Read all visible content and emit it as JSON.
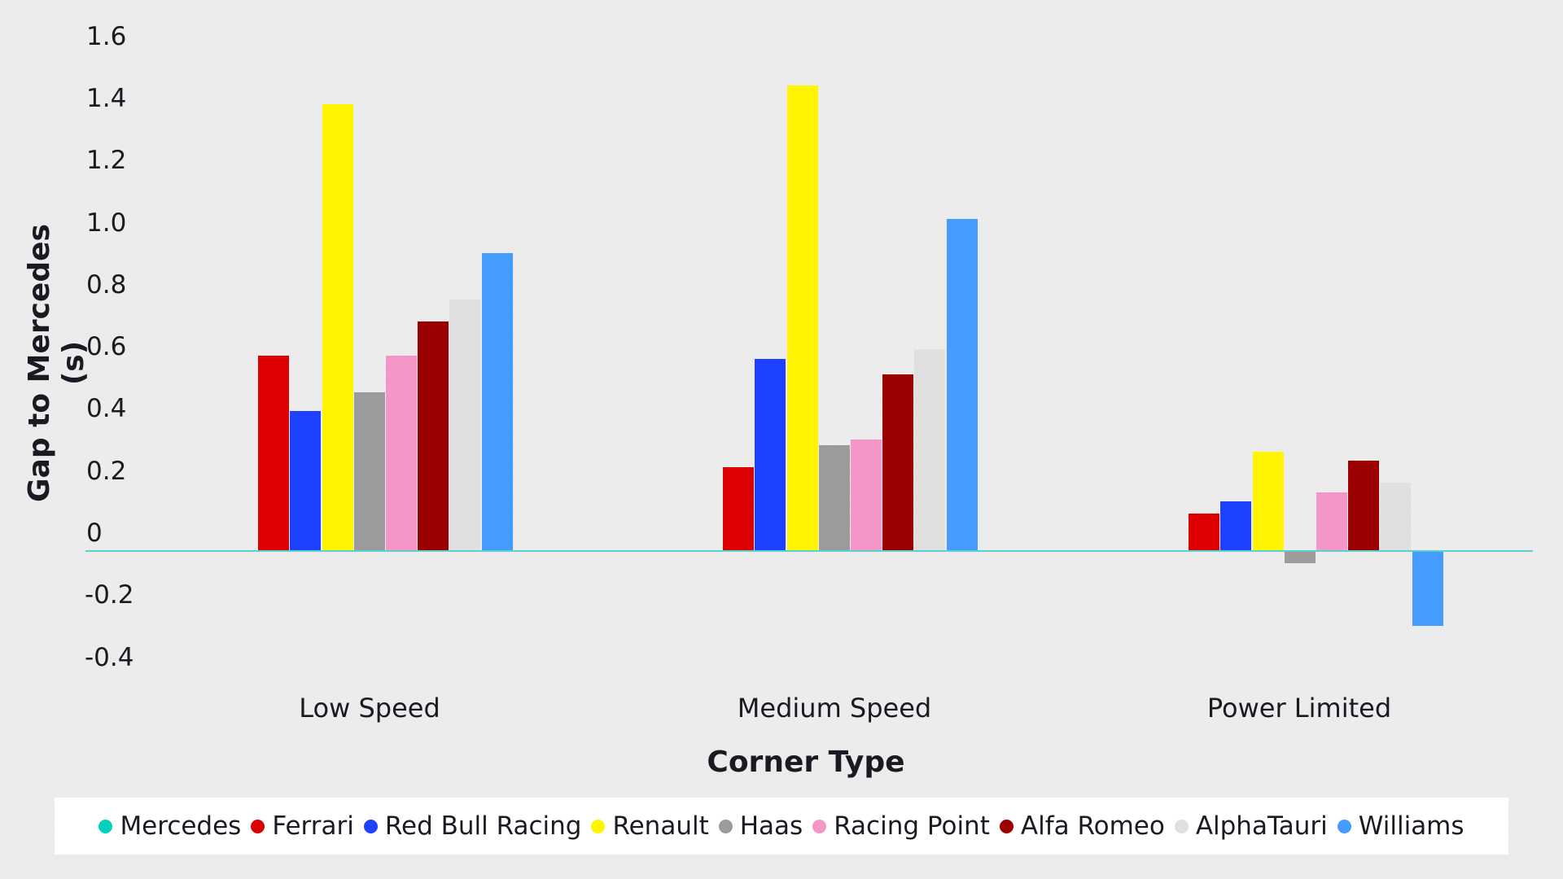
{
  "chart_data": {
    "type": "bar",
    "title": "",
    "xlabel": "Corner Type",
    "ylabel": "Gap to Mercedes (s)",
    "ylim": [
      -0.4,
      1.6
    ],
    "yticks": [
      "1.6",
      "1.4",
      "1.2",
      "1.0",
      "0.8",
      "0.6",
      "0.4",
      "0.2",
      "0",
      "-0.2",
      "-0.4"
    ],
    "grid": false,
    "legend_position": "bottom",
    "categories": [
      "Low Speed",
      "Medium Speed",
      "Power Limited"
    ],
    "series": [
      {
        "name": "Mercedes",
        "color": "#00d2be",
        "values": [
          0,
          0,
          0
        ]
      },
      {
        "name": "Ferrari",
        "color": "#dc0000",
        "values": [
          0.63,
          0.27,
          0.12
        ]
      },
      {
        "name": "Red Bull Racing",
        "color": "#1e41ff",
        "values": [
          0.45,
          0.62,
          0.16
        ]
      },
      {
        "name": "Renault",
        "color": "#fff500",
        "values": [
          1.44,
          1.5,
          0.32
        ]
      },
      {
        "name": "Haas",
        "color": "#9b9b9b",
        "values": [
          0.51,
          0.34,
          -0.04
        ]
      },
      {
        "name": "Racing Point",
        "color": "#f596c8",
        "values": [
          0.63,
          0.36,
          0.19
        ]
      },
      {
        "name": "Alfa Romeo",
        "color": "#9b0000",
        "values": [
          0.74,
          0.57,
          0.29
        ]
      },
      {
        "name": "AlphaTauri",
        "color": "#e0e0e0",
        "values": [
          0.81,
          0.65,
          0.22
        ]
      },
      {
        "name": "Williams",
        "color": "#469bff",
        "values": [
          0.96,
          1.07,
          -0.24
        ]
      }
    ]
  },
  "axes": {
    "x_title": "Corner Type",
    "y_title": "Gap to Mercedes (s)"
  },
  "colors": {
    "zero_line": "#5ccfd0",
    "text": "#1a1a22"
  }
}
